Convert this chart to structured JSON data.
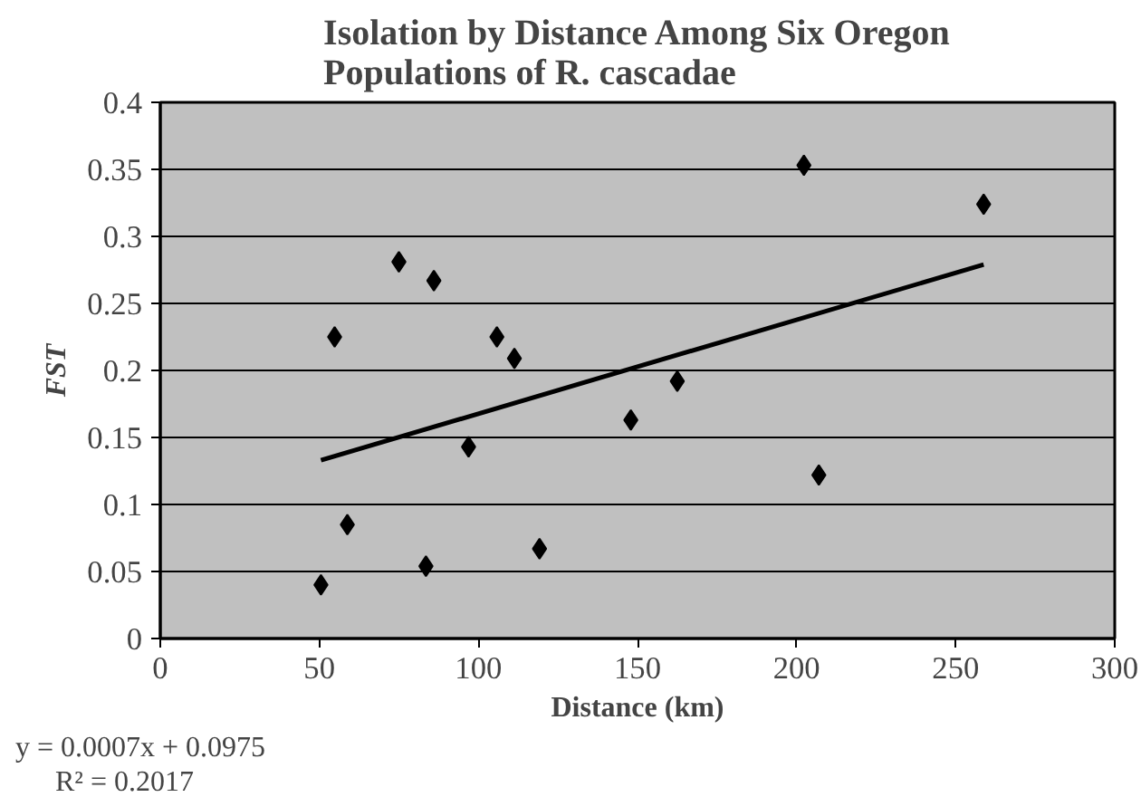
{
  "chart_data": {
    "type": "scatter",
    "title": "Isolation by Distance Among Six Oregon\nPopulations of R. cascadae",
    "xlabel": "Distance (km)",
    "ylabel": "FST",
    "series": [
      {
        "color": "#000000",
        "marker": "diamond",
        "x": [
          50.5,
          54.8,
          58.8,
          75,
          83.5,
          86,
          96.9,
          105.8,
          111.3,
          119.2,
          147.9,
          162.5,
          202.3,
          207,
          258.8
        ],
        "values": [
          0.04,
          0.225,
          0.085,
          0.281,
          0.054,
          0.267,
          0.143,
          0.225,
          0.209,
          0.067,
          0.163,
          0.192,
          0.353,
          0.122,
          0.324
        ]
      },
      {
        "type": "line",
        "color": "#000000",
        "x": [
          50.5,
          258.8
        ],
        "values": [
          0.133,
          0.279
        ]
      }
    ],
    "xlim": [
      0,
      300
    ],
    "xticks": [
      0,
      50,
      100,
      150,
      200,
      250,
      300
    ],
    "ylim": [
      0,
      0.4
    ],
    "yticks": [
      0,
      0.05,
      0.1,
      0.15,
      0.2,
      0.25,
      0.3,
      0.35,
      0.4
    ],
    "grid": "y",
    "annotations": [
      "y = 0.0007x + 0.0975",
      "R² = 0.2017"
    ]
  }
}
